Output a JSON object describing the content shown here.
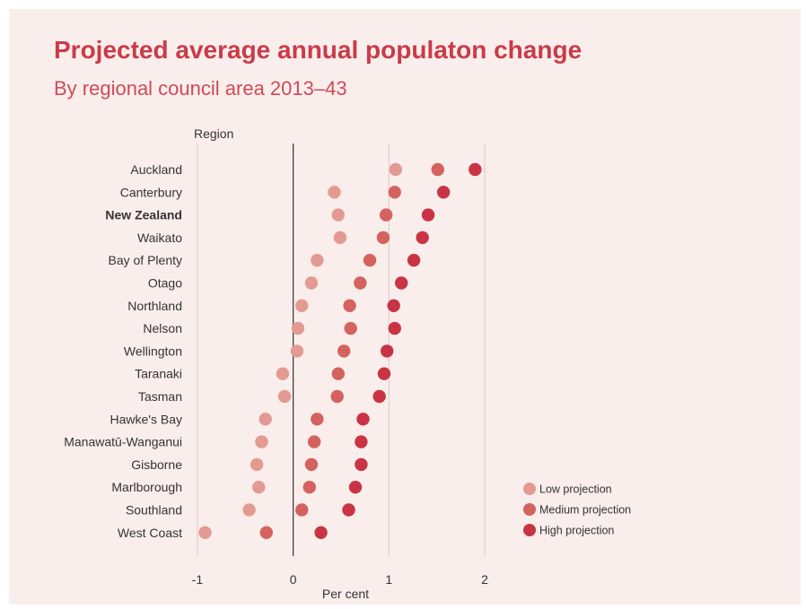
{
  "chart_data": {
    "type": "scatter",
    "title": "Projected average annual populaton change",
    "subtitle": "By regional council area 2013–43",
    "xlabel": "Per cent",
    "ylabel": "Region",
    "xlim": [
      -1,
      2
    ],
    "xticks": [
      "-1",
      "0",
      "1",
      "2"
    ],
    "xtick_values": [
      -1,
      0,
      1,
      2
    ],
    "grid": "vertical",
    "legend_position": "right",
    "highlight_category": "New Zealand",
    "categories": [
      "Auckland",
      "Canterbury",
      "New Zealand",
      "Waikato",
      "Bay of Plenty",
      "Otago",
      "Northland",
      "Nelson",
      "Wellington",
      "Taranaki",
      "Tasman",
      "Hawke's Bay",
      "Manawatū-Wanganui",
      "Gisborne",
      "Marlborough",
      "Southland",
      "West Coast"
    ],
    "series": [
      {
        "name": "Low projection",
        "color": "#e39a93",
        "values": [
          1.07,
          0.43,
          0.47,
          0.49,
          0.25,
          0.19,
          0.09,
          0.05,
          0.04,
          -0.11,
          -0.09,
          -0.29,
          -0.33,
          -0.38,
          -0.36,
          -0.46,
          -0.92
        ]
      },
      {
        "name": "Medium projection",
        "color": "#d4625f",
        "values": [
          1.51,
          1.06,
          0.97,
          0.94,
          0.8,
          0.7,
          0.59,
          0.6,
          0.53,
          0.47,
          0.46,
          0.25,
          0.22,
          0.19,
          0.17,
          0.09,
          -0.28
        ]
      },
      {
        "name": "High projection",
        "color": "#c93444",
        "values": [
          1.9,
          1.57,
          1.41,
          1.35,
          1.26,
          1.13,
          1.05,
          1.06,
          0.98,
          0.95,
          0.9,
          0.73,
          0.71,
          0.71,
          0.65,
          0.58,
          0.29
        ]
      }
    ]
  }
}
